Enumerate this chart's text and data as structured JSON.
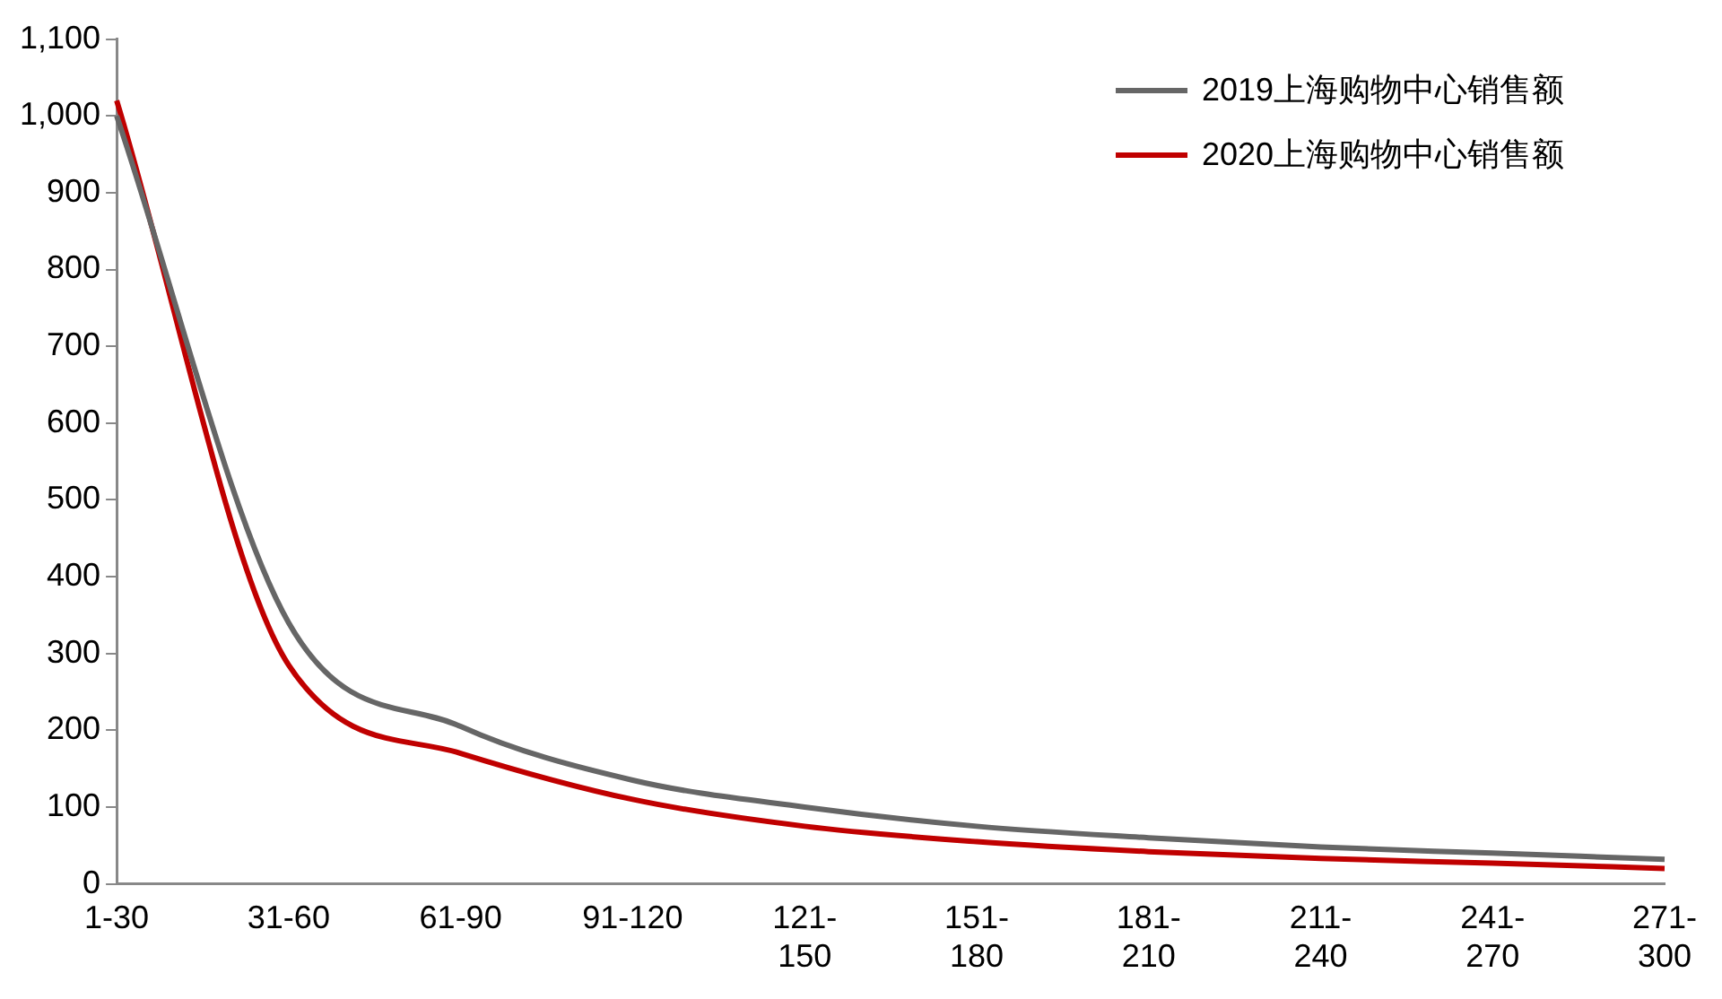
{
  "chart_data": {
    "type": "line",
    "categories": [
      "1-30",
      "31-60",
      "61-90",
      "91-120",
      "121-150",
      "151-180",
      "181-210",
      "211-240",
      "241-270",
      "271-300"
    ],
    "series": [
      {
        "name": "2019上海购物中心销售额",
        "color": "#666666",
        "values": [
          1000,
          340,
          205,
          135,
          100,
          75,
          60,
          48,
          40,
          32
        ]
      },
      {
        "name": "2020上海购物中心销售额",
        "color": "#c00000",
        "values": [
          1020,
          285,
          170,
          110,
          75,
          55,
          42,
          33,
          27,
          20
        ]
      }
    ],
    "ylim": [
      0,
      1100
    ],
    "yticks": [
      0,
      100,
      200,
      300,
      400,
      500,
      600,
      700,
      800,
      900,
      {
        "value": 1000,
        "label": "1,000"
      },
      {
        "value": 1100,
        "label": "1,100"
      }
    ],
    "legend": "top right",
    "grid": false,
    "marker": "none",
    "line_style": "solid"
  }
}
